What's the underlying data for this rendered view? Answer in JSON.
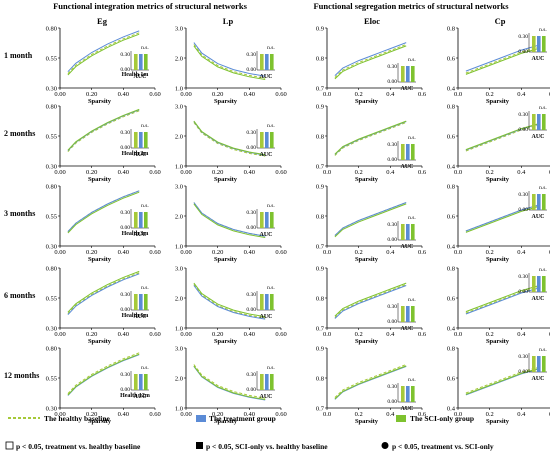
{
  "section_titles": {
    "left": "Functional integration metrics of structural networks",
    "right": "Functional segregation metrics of structural networks"
  },
  "column_titles": [
    "Eg",
    "Lp",
    "Eloc",
    "Cp"
  ],
  "row_labels": [
    "1 month",
    "2 months",
    "3 months",
    "6 months",
    "12 months"
  ],
  "health_labels": [
    "Health 1m",
    "Health 2m",
    "Health 3m",
    "Health 6m",
    "Health 12m"
  ],
  "xlabel": "Sparsity",
  "auc_label": "AUC",
  "ns_label": "n.s.",
  "inset_ticks": [
    "0.30",
    "0.00"
  ],
  "colors": {
    "healthy": "#a6c93a",
    "treatment": "#5b8bd6",
    "sci": "#7ec22f",
    "axis": "#000000"
  },
  "legend": {
    "healthy": "The healthy baseline",
    "treatment": "The treatment group",
    "sci": "The SCI-only group",
    "sig_open": "p < 0.05, treatment vs. healthy baseline",
    "sig_filled": "p < 0.05, SCI-only vs. healthy baseline",
    "sig_dot": "p < 0.05, treatment vs. SCI-only"
  },
  "chart_data": [
    {
      "type": "line",
      "metric": "Eg",
      "x": [
        0.05,
        0.1,
        0.2,
        0.3,
        0.4,
        0.5
      ],
      "xlim": [
        0,
        0.6
      ],
      "ylim": [
        0.3,
        0.8
      ],
      "yticks": [
        "0.30",
        "0.55",
        "0.80"
      ],
      "xticks": [
        "0.00",
        "0.20",
        "0.40",
        "0.60"
      ],
      "series": [
        {
          "values": [
            0.42,
            0.49,
            0.58,
            0.65,
            0.71,
            0.76
          ]
        }
      ]
    },
    {
      "type": "line",
      "metric": "Lp",
      "x": [
        0.05,
        0.1,
        0.2,
        0.3,
        0.4,
        0.5
      ],
      "xlim": [
        0,
        0.6
      ],
      "ylim": [
        1.0,
        3.0
      ],
      "yticks": [
        "1.0",
        "2.0",
        "3.0"
      ],
      "xticks": [
        "0.00",
        "0.20",
        "0.40",
        "0.60"
      ],
      "series": [
        {
          "values": [
            2.45,
            2.1,
            1.75,
            1.55,
            1.42,
            1.33
          ]
        }
      ]
    },
    {
      "type": "line",
      "metric": "Eloc",
      "x": [
        0.05,
        0.1,
        0.2,
        0.3,
        0.4,
        0.5
      ],
      "xlim": [
        0,
        0.6
      ],
      "ylim": [
        0.7,
        0.9
      ],
      "yticks": [
        "0.7",
        "0.8",
        "0.9"
      ],
      "xticks": [
        "0.0",
        "0.2",
        "0.4",
        "0.6"
      ],
      "series": [
        {
          "values": [
            0.735,
            0.76,
            0.785,
            0.805,
            0.825,
            0.845
          ]
        }
      ]
    },
    {
      "type": "line",
      "metric": "Cp",
      "x": [
        0.05,
        0.1,
        0.2,
        0.3,
        0.4,
        0.5
      ],
      "xlim": [
        0,
        0.6
      ],
      "ylim": [
        0.4,
        0.8
      ],
      "yticks": [
        "0.4",
        "0.6",
        "0.8"
      ],
      "xticks": [
        "0.0",
        "0.2",
        "0.4",
        "0.6"
      ],
      "series": [
        {
          "values": [
            0.5,
            0.52,
            0.56,
            0.6,
            0.64,
            0.67
          ]
        }
      ]
    }
  ]
}
